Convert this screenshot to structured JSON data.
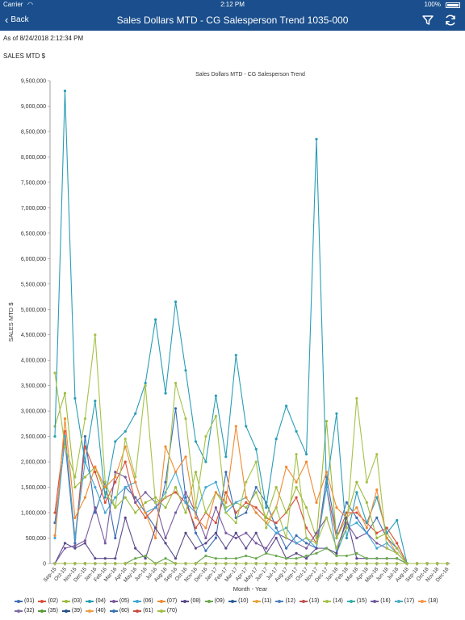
{
  "status_bar": {
    "carrier": "Carrier",
    "time": "2:12 PM",
    "battery": "100%"
  },
  "navbar": {
    "back_label": "Back",
    "title": "Sales Dollars MTD - CG Salesperson Trend 1035-000"
  },
  "as_of": "As of 8/24/2018 2:12:34 PM",
  "measure_label": "SALES MTD $",
  "chart_data": {
    "type": "line",
    "title": "Sales Dollars MTD - CG Salesperson Trend",
    "xlabel": "Month - Year",
    "ylabel": "SALES MTD $",
    "ylim": [
      0,
      9500000
    ],
    "ytick_step": 500000,
    "grid": false,
    "legend_position": "bottom",
    "x": [
      "Sep-15",
      "Oct-15",
      "Nov-15",
      "Dec-15",
      "Jan-16",
      "Feb-16",
      "Mar-16",
      "Apr-16",
      "May-16",
      "Jun-16",
      "Jul-16",
      "Aug-16",
      "Sep-16",
      "Oct-16",
      "Nov-16",
      "Dec-16",
      "Jan-17",
      "Feb-17",
      "Mar-17",
      "Apr-17",
      "May-17",
      "Jun-17",
      "Jul-17",
      "Aug-17",
      "Sep-17",
      "Oct-17",
      "Nov-17",
      "Dec-17",
      "Jan-18",
      "Feb-18",
      "Mar-18",
      "Apr-18",
      "May-18",
      "Jun-18",
      "Jul-18",
      "Aug-18",
      "Sep-18",
      "Oct-18",
      "Nov-18",
      "Dec-18"
    ],
    "series": [
      {
        "name": "(01)",
        "color": "#3c6eb4",
        "values": [
          800000,
          2400000,
          400000,
          2500000,
          1000000,
          1600000,
          500000,
          1500000,
          1300000,
          1000000,
          700000,
          1600000,
          3050000,
          1300000,
          600000,
          250000,
          500000,
          1800000,
          900000,
          1000000,
          1500000,
          1200000,
          700000,
          300000,
          550000,
          400000,
          300000,
          1700000,
          600000,
          1200000,
          900000,
          600000,
          900000,
          500000,
          300000,
          0,
          0,
          0,
          0,
          0
        ]
      },
      {
        "name": "(02)",
        "color": "#d94f3a",
        "values": [
          1000000,
          2600000,
          500000,
          2300000,
          1800000,
          1200000,
          1600000,
          2000000,
          1200000,
          900000,
          1100000,
          1300000,
          1400000,
          1200000,
          700000,
          1000000,
          800000,
          1400000,
          1000000,
          1200000,
          1100000,
          900000,
          800000,
          1000000,
          1300000,
          700000,
          400000,
          1500000,
          500000,
          1000000,
          1000000,
          800000,
          600000,
          700000,
          400000,
          0,
          0,
          0,
          0,
          0
        ]
      },
      {
        "name": "(03)",
        "color": "#9bbb3c",
        "values": [
          2700000,
          3350000,
          1500000,
          1700000,
          1900000,
          1400000,
          1100000,
          1300000,
          1000000,
          1200000,
          1300000,
          1100000,
          1500000,
          1000000,
          1800000,
          1000000,
          1400000,
          1100000,
          1200000,
          1100000,
          1400000,
          900000,
          1500000,
          1000000,
          1500000,
          1100000,
          500000,
          2800000,
          500000,
          900000,
          1600000,
          1200000,
          500000,
          600000,
          300000,
          0,
          0,
          0,
          0,
          0
        ]
      },
      {
        "name": "(04)",
        "color": "#2a9db5",
        "values": [
          2500000,
          9300000,
          3250000,
          2000000,
          3200000,
          1300000,
          2400000,
          2600000,
          2950000,
          3550000,
          4800000,
          3350000,
          5150000,
          3800000,
          2400000,
          2000000,
          3300000,
          2100000,
          4100000,
          2700000,
          2250000,
          1100000,
          2450000,
          3100000,
          2600000,
          2150000,
          8350000,
          1500000,
          2950000,
          500000,
          1400000,
          800000,
          1300000,
          600000,
          850000,
          0,
          0,
          0,
          0,
          0
        ]
      },
      {
        "name": "(05)",
        "color": "#7a5a9e",
        "values": [
          0,
          300000,
          350000,
          450000,
          1100000,
          400000,
          1800000,
          1700000,
          1200000,
          1400000,
          1200000,
          500000,
          1000000,
          1400000,
          1000000,
          500000,
          1100000,
          600000,
          500000,
          600000,
          400000,
          300000,
          600000,
          500000,
          400000,
          300000,
          600000,
          900000,
          300000,
          800000,
          500000,
          600000,
          400000,
          300000,
          200000,
          0,
          0,
          0,
          0,
          0
        ]
      },
      {
        "name": "(06)",
        "color": "#3fa7d6",
        "values": [
          500000,
          2500000,
          500000,
          2000000,
          1500000,
          1000000,
          1300000,
          1500000,
          1600000,
          1000000,
          1100000,
          1400000,
          1800000,
          1200000,
          1000000,
          1500000,
          1600000,
          1000000,
          1200000,
          1300000,
          1000000,
          800000,
          600000,
          700000,
          400000,
          500000,
          300000,
          1500000,
          200000,
          700000,
          800000,
          600000,
          300000,
          400000,
          200000,
          0,
          0,
          0,
          0,
          0
        ]
      },
      {
        "name": "(07)",
        "color": "#f08a32",
        "values": [
          550000,
          2850000,
          900000,
          1300000,
          1900000,
          1500000,
          1700000,
          2300000,
          1600000,
          1000000,
          500000,
          2300000,
          1800000,
          2100000,
          900000,
          700000,
          1400000,
          1200000,
          2700000,
          1300000,
          1000000,
          800000,
          1100000,
          1900000,
          1600000,
          2000000,
          1200000,
          1800000,
          1100000,
          900000,
          1100000,
          700000,
          1450000,
          500000,
          200000,
          0,
          0,
          0,
          0,
          0
        ]
      },
      {
        "name": "(08)",
        "color": "#5b4a8a",
        "values": [
          0,
          400000,
          300000,
          400000,
          100000,
          100000,
          100000,
          900000,
          300000,
          100000,
          700000,
          400000,
          100000,
          600000,
          300000,
          400000,
          600000,
          300000,
          600000,
          300000,
          600000,
          200000,
          500000,
          100000,
          200000,
          100000,
          300000,
          300000,
          200000,
          900000,
          100000,
          100000,
          100000,
          100000,
          100000,
          0,
          0,
          0,
          0,
          0
        ]
      },
      {
        "name": "(09)",
        "color": "#6aa84f",
        "values": [
          0,
          0,
          0,
          0,
          0,
          0,
          0,
          0,
          100000,
          150000,
          0,
          100000,
          0,
          0,
          0,
          150000,
          100000,
          100000,
          100000,
          150000,
          100000,
          200000,
          150000,
          100000,
          100000,
          150000,
          200000,
          300000,
          150000,
          150000,
          200000,
          100000,
          100000,
          100000,
          100000,
          0,
          0,
          0,
          0,
          0
        ]
      },
      {
        "name": "(10)",
        "color": "#2b5d9b",
        "values": [
          0,
          0,
          0,
          0,
          0,
          0,
          0,
          0,
          0,
          0,
          0,
          0,
          0,
          0,
          0,
          0,
          0,
          0,
          0,
          0,
          0,
          0,
          0,
          0,
          0,
          0,
          0,
          0,
          0,
          0,
          0,
          0,
          0,
          0,
          0,
          0,
          0,
          0,
          0,
          0
        ]
      },
      {
        "name": "(11)",
        "color": "#e8a33a",
        "values": [
          0,
          0,
          0,
          0,
          0,
          0,
          0,
          0,
          0,
          0,
          0,
          0,
          0,
          0,
          0,
          0,
          0,
          0,
          0,
          0,
          0,
          0,
          0,
          0,
          0,
          0,
          0,
          0,
          0,
          0,
          0,
          0,
          0,
          0,
          0,
          0,
          0,
          0,
          0,
          0
        ]
      },
      {
        "name": "(12)",
        "color": "#4f81bd",
        "values": [
          0,
          0,
          0,
          0,
          0,
          0,
          0,
          0,
          0,
          0,
          0,
          0,
          0,
          0,
          0,
          0,
          0,
          0,
          0,
          0,
          0,
          0,
          0,
          0,
          0,
          0,
          0,
          0,
          0,
          0,
          0,
          0,
          0,
          0,
          0,
          0,
          0,
          0,
          0,
          0
        ]
      },
      {
        "name": "(13)",
        "color": "#c0504d",
        "values": [
          0,
          0,
          0,
          0,
          0,
          0,
          0,
          0,
          0,
          0,
          0,
          0,
          0,
          0,
          0,
          0,
          0,
          0,
          0,
          0,
          0,
          0,
          0,
          0,
          0,
          0,
          0,
          0,
          0,
          0,
          0,
          0,
          0,
          0,
          0,
          0,
          0,
          0,
          0,
          0
        ]
      },
      {
        "name": "(14)",
        "color": "#a5c249",
        "values": [
          3750000,
          2300000,
          1700000,
          2850000,
          4500000,
          1600000,
          1100000,
          2450000,
          1700000,
          3500000,
          1200000,
          1300000,
          3550000,
          2850000,
          1100000,
          2500000,
          2900000,
          1000000,
          800000,
          1600000,
          2000000,
          700000,
          1100000,
          500000,
          2150000,
          500000,
          400000,
          900000,
          300000,
          700000,
          3250000,
          1600000,
          2150000,
          300000,
          200000,
          0,
          0,
          0,
          0,
          0
        ]
      },
      {
        "name": "(15)",
        "color": "#36b0a8",
        "values": [
          0,
          0,
          0,
          0,
          0,
          0,
          0,
          0,
          0,
          0,
          0,
          0,
          0,
          0,
          0,
          0,
          0,
          0,
          0,
          0,
          0,
          0,
          0,
          0,
          0,
          0,
          0,
          0,
          0,
          0,
          0,
          0,
          0,
          0,
          0,
          0,
          0,
          0,
          0,
          0
        ]
      },
      {
        "name": "(16)",
        "color": "#6f5b9c",
        "values": [
          0,
          0,
          0,
          0,
          0,
          0,
          0,
          0,
          0,
          0,
          0,
          0,
          0,
          0,
          0,
          0,
          0,
          0,
          0,
          0,
          0,
          0,
          0,
          0,
          0,
          0,
          0,
          0,
          0,
          0,
          0,
          0,
          0,
          0,
          0,
          0,
          0,
          0,
          0,
          0
        ]
      },
      {
        "name": "(17)",
        "color": "#4bacc6",
        "values": [
          0,
          0,
          0,
          0,
          0,
          0,
          0,
          0,
          0,
          0,
          0,
          0,
          0,
          0,
          0,
          0,
          0,
          0,
          0,
          0,
          0,
          0,
          0,
          0,
          0,
          0,
          0,
          0,
          0,
          0,
          0,
          0,
          0,
          0,
          0,
          0,
          0,
          0,
          0,
          0
        ]
      },
      {
        "name": "(18)",
        "color": "#f79646",
        "values": [
          0,
          0,
          0,
          0,
          0,
          0,
          0,
          0,
          0,
          0,
          0,
          0,
          0,
          0,
          0,
          0,
          0,
          0,
          0,
          0,
          0,
          0,
          0,
          0,
          0,
          0,
          0,
          0,
          0,
          0,
          0,
          0,
          0,
          0,
          0,
          0,
          0,
          0,
          0,
          0
        ]
      },
      {
        "name": "(32)",
        "color": "#7d6aa6",
        "values": [
          0,
          0,
          0,
          0,
          0,
          0,
          0,
          0,
          0,
          0,
          0,
          0,
          0,
          0,
          0,
          0,
          0,
          0,
          0,
          0,
          0,
          0,
          0,
          0,
          0,
          0,
          0,
          0,
          0,
          0,
          0,
          0,
          0,
          0,
          0,
          0,
          0,
          0,
          0,
          0
        ]
      },
      {
        "name": "(35)",
        "color": "#5a9a3a",
        "values": [
          0,
          0,
          0,
          0,
          0,
          0,
          0,
          0,
          0,
          0,
          0,
          0,
          0,
          0,
          0,
          0,
          0,
          0,
          0,
          0,
          0,
          0,
          0,
          0,
          0,
          0,
          0,
          0,
          0,
          0,
          0,
          0,
          0,
          0,
          0,
          0,
          0,
          0,
          0,
          0
        ]
      },
      {
        "name": "(39)",
        "color": "#244f86",
        "values": [
          0,
          0,
          0,
          0,
          0,
          0,
          0,
          0,
          0,
          0,
          0,
          0,
          0,
          0,
          0,
          0,
          0,
          0,
          0,
          0,
          0,
          0,
          0,
          0,
          0,
          0,
          0,
          0,
          0,
          0,
          0,
          0,
          0,
          0,
          0,
          0,
          0,
          0,
          0,
          0
        ]
      },
      {
        "name": "(40)",
        "color": "#e9a04a",
        "values": [
          0,
          0,
          0,
          0,
          0,
          0,
          0,
          0,
          0,
          0,
          0,
          0,
          0,
          0,
          0,
          0,
          0,
          0,
          0,
          0,
          0,
          0,
          0,
          0,
          0,
          0,
          0,
          0,
          0,
          0,
          0,
          0,
          0,
          0,
          0,
          0,
          0,
          0,
          0,
          0
        ]
      },
      {
        "name": "(60)",
        "color": "#3a70b0",
        "values": [
          0,
          0,
          0,
          0,
          0,
          0,
          0,
          0,
          0,
          0,
          0,
          0,
          0,
          0,
          0,
          0,
          0,
          0,
          0,
          0,
          0,
          0,
          0,
          0,
          0,
          0,
          0,
          0,
          0,
          0,
          0,
          0,
          0,
          0,
          0,
          0,
          0,
          0,
          0,
          0
        ]
      },
      {
        "name": "(61)",
        "color": "#c94b42",
        "values": [
          0,
          0,
          0,
          0,
          0,
          0,
          0,
          0,
          0,
          0,
          0,
          0,
          0,
          0,
          0,
          0,
          0,
          0,
          0,
          0,
          0,
          0,
          0,
          0,
          0,
          0,
          0,
          0,
          0,
          0,
          0,
          0,
          0,
          0,
          0,
          0,
          0,
          0,
          0,
          0
        ]
      },
      {
        "name": "(70)",
        "color": "#9fbf46",
        "values": [
          0,
          0,
          0,
          0,
          0,
          0,
          0,
          0,
          0,
          0,
          0,
          0,
          0,
          0,
          0,
          0,
          0,
          0,
          0,
          0,
          0,
          0,
          0,
          0,
          0,
          0,
          0,
          0,
          0,
          0,
          0,
          0,
          0,
          0,
          0,
          0,
          0,
          0,
          0,
          0
        ]
      }
    ]
  }
}
